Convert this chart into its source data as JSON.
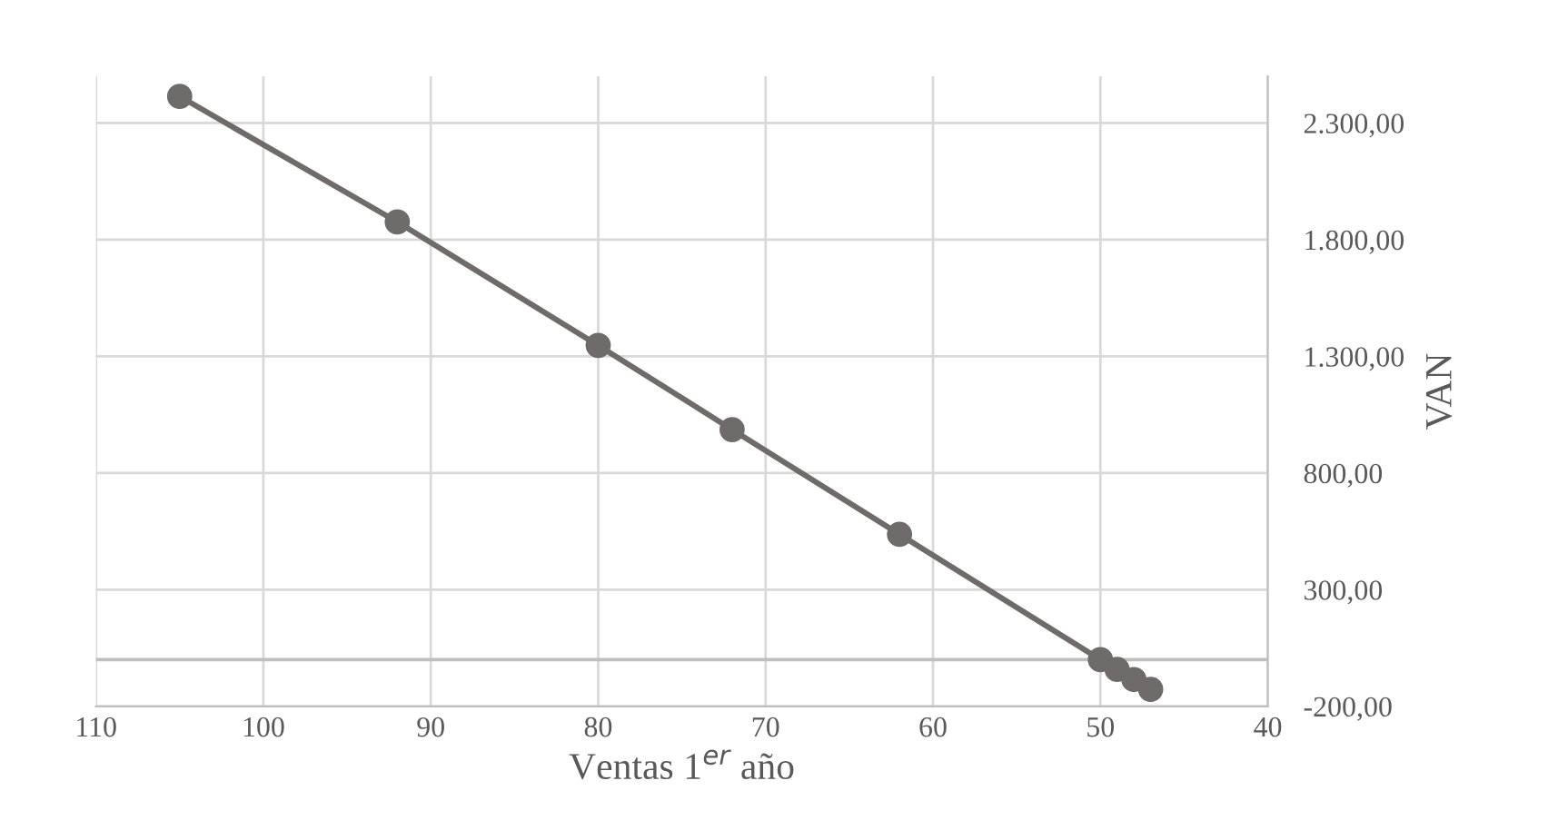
{
  "chart_data": {
    "type": "line",
    "xlabel": "Ventas 1$^{er}$ año",
    "ylabel": "VAN",
    "x": [
      105,
      92,
      80,
      72,
      62,
      50,
      49,
      48,
      47
    ],
    "series": [
      {
        "color": "#6f6b6b",
        "values": [
          2414,
          1876,
          1347,
          986,
          537,
          0,
          -42,
          -85,
          -127
        ]
      }
    ],
    "xlim": [
      110,
      40
    ],
    "xticks": [
      110,
      100,
      90,
      80,
      70,
      60,
      50,
      40
    ],
    "ylim": [
      -200,
      2500
    ],
    "yticks": [
      {
        "value": -200,
        "label": "-200,00"
      },
      {
        "value": 300,
        "label": "300,00"
      },
      {
        "value": 800,
        "label": "800,00"
      },
      {
        "value": 1300,
        "label": "1.300,00"
      },
      {
        "value": 1800,
        "label": "1.800,00"
      },
      {
        "value": 2300,
        "label": "2.300,00"
      }
    ],
    "ref_lines": [
      {
        "axis": "y",
        "value": 0,
        "color": "#bfbfbf"
      }
    ],
    "grid": true,
    "marker": "circle",
    "line_style": "solid"
  }
}
